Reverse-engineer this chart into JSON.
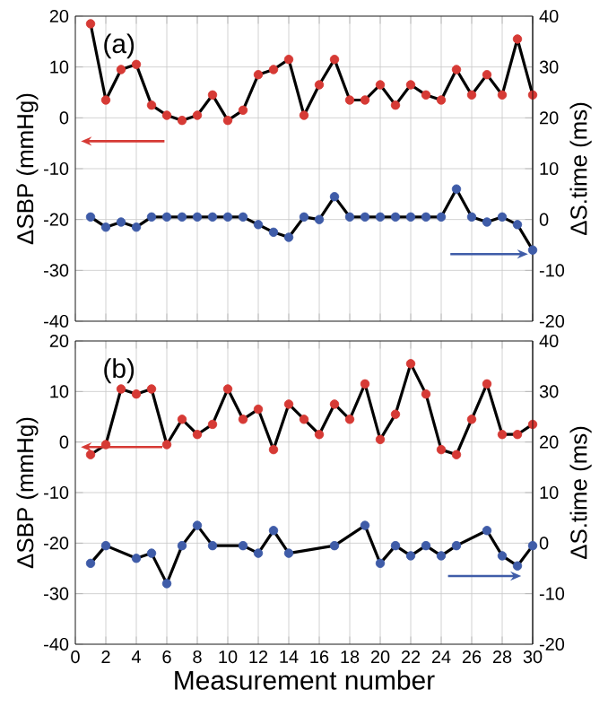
{
  "chart_data": [
    {
      "type": "line",
      "ylabel": "ΔSBP (mmHg)",
      "y2label": "ΔS.time (ms)",
      "annotations": [
        "(a)"
      ],
      "xlim": [
        0,
        30
      ],
      "xticks": [
        0,
        2,
        4,
        6,
        8,
        10,
        12,
        14,
        16,
        18,
        20,
        22,
        24,
        26,
        28,
        30
      ],
      "ylim": [
        -40,
        20
      ],
      "yticks": [
        -40,
        -30,
        -20,
        -10,
        0,
        10,
        20
      ],
      "y2lim": [
        -20,
        40
      ],
      "y2ticks": [
        -20,
        -10,
        0,
        10,
        20,
        30,
        40
      ],
      "grid": true,
      "tick_labels": "y",
      "x": [
        1,
        2,
        3,
        4,
        5,
        6,
        7,
        8,
        9,
        10,
        11,
        12,
        13,
        14,
        15,
        16,
        17,
        18,
        19,
        20,
        21,
        22,
        23,
        24,
        25,
        26,
        27,
        28,
        29,
        30
      ],
      "series": [
        {
          "color": "#000000",
          "marker": "none",
          "values": [
            18.5,
            3.5,
            9.5,
            10.5,
            2.5,
            0.5,
            -0.5,
            0.5,
            4.5,
            -0.5,
            1.5,
            8.5,
            9.5,
            11.5,
            0.5,
            6.5,
            11.5,
            3.5,
            3.5,
            6.5,
            2.5,
            6.5,
            4.5,
            3.5,
            9.5,
            4.5,
            8.5,
            4.5,
            15.5,
            4.5
          ]
        },
        {
          "type": "scatter",
          "color": "#d63a35",
          "marker": "circle",
          "values": [
            18.5,
            3.5,
            9.5,
            10.5,
            2.5,
            0.5,
            -0.5,
            0.5,
            4.5,
            -0.5,
            1.5,
            8.5,
            9.5,
            11.5,
            0.5,
            6.5,
            11.5,
            3.5,
            3.5,
            6.5,
            2.5,
            6.5,
            4.5,
            3.5,
            9.5,
            4.5,
            8.5,
            4.5,
            15.5,
            4.5
          ]
        },
        {
          "axis": "y2",
          "color": "#000000",
          "marker": "none",
          "values": [
            0.5,
            -1.5,
            -0.5,
            -1.5,
            0.5,
            0.5,
            0.5,
            0.5,
            0.5,
            0.5,
            0.5,
            -1,
            -2.5,
            -3.5,
            0.5,
            0,
            4.5,
            0.5,
            0.5,
            0.5,
            0.5,
            0.5,
            0.5,
            0.5,
            6,
            0.5,
            -0.5,
            0.5,
            -1,
            -6
          ]
        },
        {
          "type": "scatter",
          "axis": "y2",
          "color": "#3f5ca8",
          "marker": "circle",
          "values": [
            0.5,
            -1.5,
            -0.5,
            -1.5,
            0.5,
            0.5,
            0.5,
            0.5,
            0.5,
            0.5,
            0.5,
            -1,
            -2.5,
            -3.5,
            0.5,
            0,
            4.5,
            0.5,
            0.5,
            0.5,
            0.5,
            0.5,
            0.5,
            0.5,
            6,
            0.5,
            -0.5,
            0.5,
            -1,
            -6
          ]
        }
      ]
    },
    {
      "type": "line",
      "xlabel": "Measurement number",
      "ylabel": "ΔSBP (mmHg)",
      "y2label": "ΔS.time (ms)",
      "annotations": [
        "(b)"
      ],
      "xlim": [
        0,
        30
      ],
      "xticks": [
        0,
        2,
        4,
        6,
        8,
        10,
        12,
        14,
        16,
        18,
        20,
        22,
        24,
        26,
        28,
        30
      ],
      "ylim": [
        -40,
        20
      ],
      "yticks": [
        -40,
        -30,
        -20,
        -10,
        0,
        10,
        20
      ],
      "y2lim": [
        -20,
        40
      ],
      "y2ticks": [
        -20,
        -10,
        0,
        10,
        20,
        30,
        40
      ],
      "grid": true,
      "x": [
        1,
        2,
        3,
        4,
        5,
        6,
        7,
        8,
        9,
        10,
        11,
        12,
        13,
        14,
        15,
        16,
        17,
        18,
        19,
        20,
        21,
        22,
        23,
        24,
        25,
        26,
        27,
        28,
        29,
        30
      ],
      "series": [
        {
          "color": "#000000",
          "marker": "none",
          "values": [
            -2.5,
            -0.5,
            10.5,
            9.5,
            10.5,
            -0.5,
            4.5,
            1.5,
            3.5,
            10.5,
            4.5,
            6.5,
            -1.5,
            7.5,
            4.5,
            1.5,
            7.5,
            4.5,
            11.5,
            0.5,
            5.5,
            15.5,
            9.5,
            -1.5,
            -2.5,
            4.5,
            11.5,
            1.5,
            1.5,
            3.5
          ]
        },
        {
          "type": "scatter",
          "color": "#d63a35",
          "marker": "circle",
          "values": [
            -2.5,
            -0.5,
            10.5,
            9.5,
            10.5,
            -0.5,
            4.5,
            1.5,
            3.5,
            10.5,
            4.5,
            6.5,
            -1.5,
            7.5,
            4.5,
            1.5,
            7.5,
            4.5,
            11.5,
            0.5,
            5.5,
            15.5,
            9.5,
            -1.5,
            -2.5,
            4.5,
            11.5,
            1.5,
            1.5,
            3.5
          ]
        },
        {
          "axis": "y2",
          "color": "#000000",
          "marker": "none",
          "x": [
            1,
            2,
            4,
            5,
            6,
            7,
            8,
            9,
            11,
            12,
            13,
            14,
            17,
            19,
            20,
            21,
            22,
            23,
            24,
            25,
            27,
            28,
            29,
            30
          ],
          "values": [
            -4,
            -0.5,
            -3,
            -2,
            -8,
            -0.5,
            3.5,
            -0.5,
            -0.5,
            -2,
            2.5,
            -2,
            -0.5,
            3.5,
            -4,
            -0.5,
            -2.5,
            -0.5,
            -2.5,
            -0.5,
            2.5,
            -2.5,
            -4.5,
            -0.5
          ]
        },
        {
          "type": "scatter",
          "axis": "y2",
          "color": "#3f5ca8",
          "marker": "circle",
          "x": [
            1,
            2,
            4,
            5,
            6,
            7,
            8,
            9,
            11,
            12,
            13,
            14,
            17,
            19,
            20,
            21,
            22,
            23,
            24,
            25,
            27,
            28,
            29,
            30
          ],
          "values": [
            -4,
            -0.5,
            -3,
            -2,
            -8,
            -0.5,
            3.5,
            -0.5,
            -0.5,
            -2,
            2.5,
            -2,
            -0.5,
            3.5,
            -4,
            -0.5,
            -2.5,
            -0.5,
            -2.5,
            -0.5,
            2.5,
            -2.5,
            -4.5,
            -0.5
          ]
        }
      ]
    }
  ]
}
